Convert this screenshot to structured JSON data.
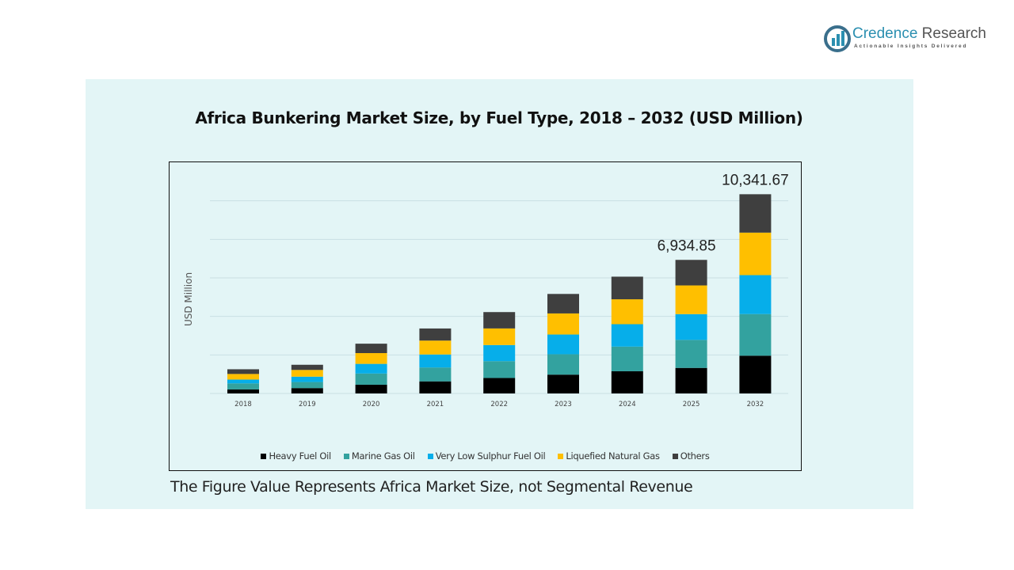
{
  "logo": {
    "name_part1": "Credence",
    "name_part2": "Research",
    "tagline": "Actionable Insights Delivered",
    "color": "#2b8fb0"
  },
  "note": "The Figure Value Represents Africa Market Size, not Segmental Revenue",
  "chart_data": {
    "type": "bar",
    "stacked": true,
    "title": "Africa Bunkering Market Size, by Fuel Type, 2018 – 2032 (USD Million)",
    "xlabel": "",
    "ylabel": "USD Million",
    "ylim": [
      0,
      12000
    ],
    "grid": true,
    "legend_position": "bottom",
    "categories": [
      "2018",
      "2019",
      "2020",
      "2021",
      "2022",
      "2023",
      "2024",
      "2025",
      "2032"
    ],
    "series": [
      {
        "name": "Heavy Fuel Oil",
        "color": "#000000",
        "values": [
          209,
          279,
          454,
          628,
          803,
          977,
          1152,
          1326,
          1961
        ]
      },
      {
        "name": "Marine Gas Oil",
        "color": "#33a29f",
        "values": [
          314,
          314,
          582,
          721,
          873,
          1059,
          1280,
          1455,
          2160
        ]
      },
      {
        "name": "Very Low Sulphur Fuel Oil",
        "color": "#06aeea",
        "values": [
          198,
          279,
          500,
          675,
          838,
          1024,
          1164,
          1338,
          2022
        ]
      },
      {
        "name": "Liquefied Natural Gas",
        "color": "#ffbf00",
        "values": [
          291,
          349,
          559,
          721,
          861,
          1094,
          1292,
          1489,
          2206
        ]
      },
      {
        "name": "Others",
        "color": "#3f3f3f",
        "values": [
          244,
          268,
          489,
          628,
          849,
          1012,
          1175,
          1326,
          1992.67
        ]
      }
    ],
    "data_labels": [
      {
        "category": "2025",
        "text": "6,934.85"
      },
      {
        "category": "2032",
        "text": "10,341.67"
      }
    ]
  }
}
